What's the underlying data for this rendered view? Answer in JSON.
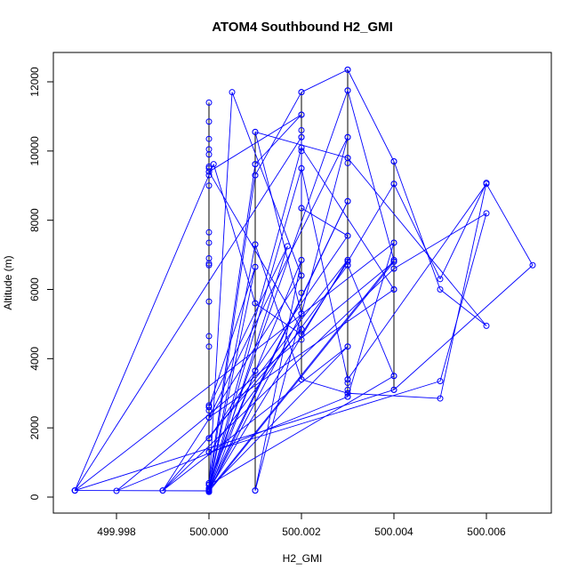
{
  "chart_data": {
    "type": "scatter",
    "title": "ATOM4 Southbound H2_GMI",
    "xlabel": "H2_GMI",
    "ylabel": "Altitude (m)",
    "xlim": [
      499.997,
      500.007
    ],
    "ylim": [
      0,
      12500
    ],
    "x_ticks": [
      "499.998",
      "500.000",
      "500.002",
      "500.004",
      "500.006"
    ],
    "x_tick_values": [
      499.998,
      500.0,
      500.002,
      500.004,
      500.006
    ],
    "y_ticks": [
      "0",
      "2000",
      "4000",
      "6000",
      "8000",
      "10000",
      "12000"
    ],
    "y_tick_values": [
      0,
      2000,
      4000,
      6000,
      8000,
      10000,
      12000
    ],
    "grid": false,
    "series_color": "#0000ff",
    "vertical_series_color": "#000000",
    "points": [
      [
        499.9971,
        190
      ],
      [
        500.0001,
        9620
      ],
      [
        500.001,
        5600
      ],
      [
        500.002,
        4700
      ],
      [
        500.003,
        6800
      ],
      [
        500.004,
        9050
      ],
      [
        500.005,
        6300
      ],
      [
        500.006,
        9080
      ],
      [
        500.005,
        2850
      ],
      [
        500.003,
        3000
      ],
      [
        500.002,
        3400
      ],
      [
        500.001,
        7300
      ],
      [
        500.0,
        220
      ],
      [
        500.001,
        9300
      ],
      [
        500.002,
        11700
      ],
      [
        500.003,
        12350
      ],
      [
        500.004,
        9700
      ],
      [
        500.005,
        6000
      ],
      [
        500.006,
        4950
      ],
      [
        500.003,
        9800
      ],
      [
        500.001,
        10550
      ],
      [
        500.002,
        5300
      ],
      [
        500.0,
        180
      ],
      [
        499.9971,
        190
      ],
      [
        500.004,
        7350
      ],
      [
        500.003,
        2900
      ],
      [
        499.998,
        180
      ],
      [
        500.004,
        6800
      ],
      [
        500.0,
        160
      ],
      [
        500.003,
        8550
      ],
      [
        500.0,
        250
      ],
      [
        500.002,
        10100
      ],
      [
        500.004,
        6000
      ],
      [
        500.0,
        2300
      ],
      [
        500.003,
        10400
      ],
      [
        500.001,
        190
      ],
      [
        500.002,
        6850
      ],
      [
        500.0,
        400
      ],
      [
        500.001,
        9620
      ],
      [
        500.002,
        11050
      ],
      [
        500.0,
        9400
      ],
      [
        500.002,
        4850
      ],
      [
        499.999,
        190
      ],
      [
        500.004,
        6600
      ],
      [
        500.006,
        8200
      ],
      [
        500.005,
        3350
      ],
      [
        500.0,
        1300
      ],
      [
        500.003,
        6700
      ],
      [
        500.004,
        3500
      ],
      [
        500.0,
        350
      ],
      [
        500.003,
        11750
      ],
      [
        500.004,
        6850
      ],
      [
        500.0,
        200
      ],
      [
        500.002,
        9500
      ],
      [
        500.003,
        3400
      ],
      [
        500.006,
        9050
      ],
      [
        500.007,
        6700
      ],
      [
        500.004,
        3100
      ],
      [
        499.9971,
        190
      ],
      [
        500.002,
        10400
      ],
      [
        500.002,
        8350
      ],
      [
        500.003,
        7550
      ],
      [
        500.0,
        1700
      ],
      [
        500.003,
        6850
      ],
      [
        500.0,
        210
      ],
      [
        500.0005,
        11700
      ],
      [
        500.002,
        6400
      ],
      [
        499.999,
        190
      ],
      [
        500.003,
        4350
      ],
      [
        500.0,
        230
      ],
      [
        500.001,
        6650
      ],
      [
        500.0,
        2600
      ],
      [
        500.0017,
        7250
      ],
      [
        500.0,
        150
      ],
      [
        500.001,
        3650
      ]
    ],
    "vertical_profiles": [
      {
        "x": 500.0,
        "ymin": 150,
        "ymax": 11400,
        "markers": [
          11400,
          10850,
          10350,
          10050,
          9900,
          9550,
          9500,
          9400,
          9300,
          9000,
          7650,
          7350,
          6900,
          6750,
          6700,
          5650,
          4650,
          4350,
          2650,
          2600,
          2500,
          2300,
          1700,
          1300,
          400,
          350,
          250,
          230,
          210,
          200,
          180,
          160,
          150
        ]
      },
      {
        "x": 500.001,
        "ymin": 190,
        "ymax": 10550,
        "markers": [
          10550,
          9620,
          9300,
          7300,
          6650,
          5600,
          3650,
          190
        ]
      },
      {
        "x": 500.002,
        "ymin": 3400,
        "ymax": 11700,
        "markers": [
          11700,
          11050,
          10600,
          10400,
          10100,
          10000,
          9500,
          8350,
          6850,
          6400,
          5900,
          5300,
          4850,
          4700,
          4550,
          3400
        ]
      },
      {
        "x": 500.003,
        "ymin": 2900,
        "ymax": 12350,
        "markers": [
          12350,
          11750,
          10400,
          9800,
          9650,
          8550,
          7550,
          6850,
          6700,
          4350,
          3400,
          3300,
          3100,
          3000,
          2900
        ]
      },
      {
        "x": 500.004,
        "ymin": 3100,
        "ymax": 9700,
        "markers": [
          9700,
          9050,
          7350,
          6850,
          6800,
          6600,
          6000,
          3500,
          3100
        ]
      }
    ]
  }
}
